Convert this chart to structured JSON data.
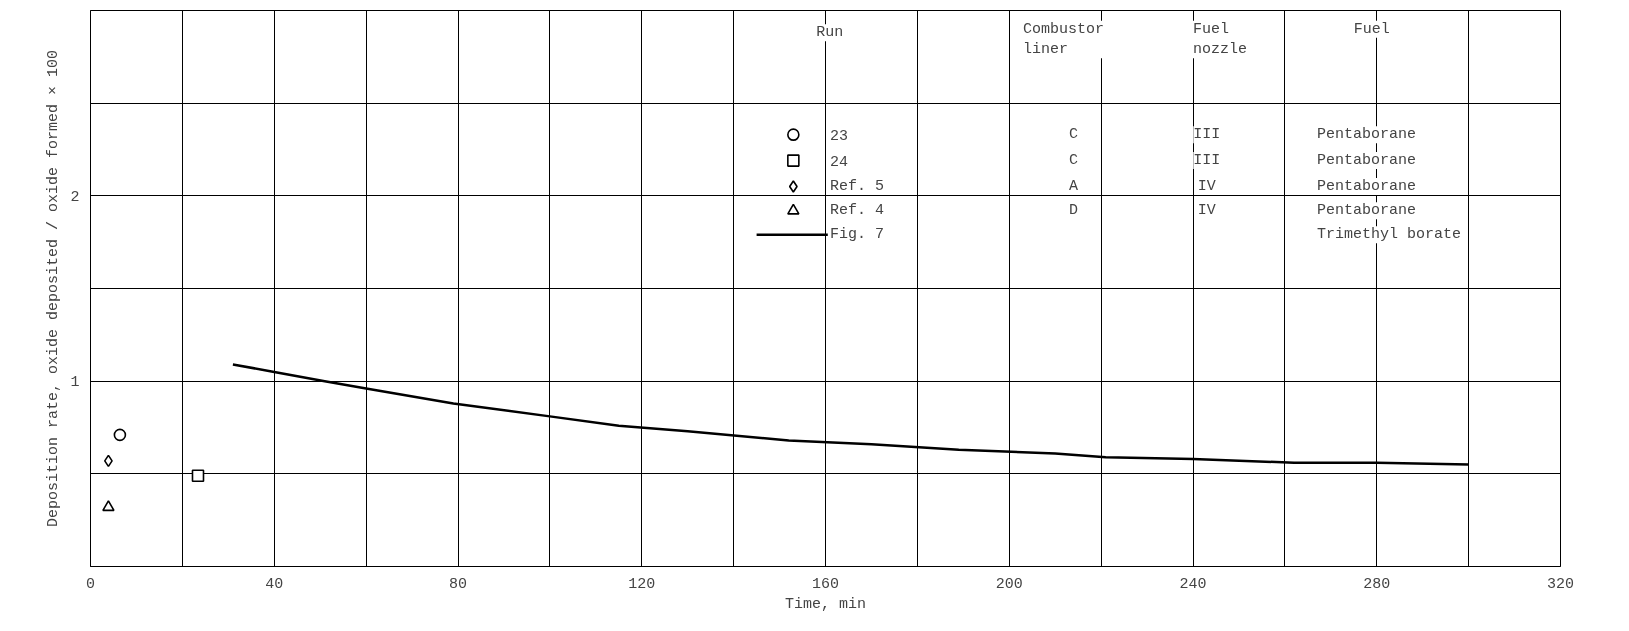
{
  "chart_data": {
    "type": "scatter",
    "xlabel": "Time, min",
    "ylabel": "Deposition rate, oxide deposited / oxide formed × 100",
    "xlim": [
      0,
      320
    ],
    "ylim": [
      0,
      3
    ],
    "xticks": [
      0,
      {
        "value": 20,
        "label": null
      },
      40,
      {
        "value": 60,
        "label": null
      },
      80,
      {
        "value": 100,
        "label": null
      },
      120,
      {
        "value": 140,
        "label": null
      },
      160,
      {
        "value": 180,
        "label": null
      },
      200,
      {
        "value": 220,
        "label": null
      },
      240,
      {
        "value": 260,
        "label": null
      },
      280,
      {
        "value": 300,
        "label": null
      },
      320
    ],
    "yticks": [
      {
        "value": 0,
        "label": null
      },
      {
        "value": 0.5,
        "label": null
      },
      1,
      {
        "value": 1.5,
        "label": null
      },
      2,
      {
        "value": 2.5,
        "label": null
      },
      {
        "value": 3,
        "label": null
      }
    ],
    "grid": true,
    "legend": "top right",
    "legend_title": "Run",
    "series": [
      {
        "name": "23",
        "color": "#000000",
        "marker": "circle",
        "x": [
          6.4
        ],
        "values": [
          0.71
        ]
      },
      {
        "name": "24",
        "color": "#000000",
        "marker": "square",
        "x": [
          23.4
        ],
        "values": [
          0.49
        ]
      },
      {
        "name": "Ref. 5",
        "color": "#000000",
        "marker": "diamond",
        "x": [
          3.9
        ],
        "values": [
          0.57
        ]
      },
      {
        "name": "Ref. 4",
        "color": "#000000",
        "marker": "triangle",
        "x": [
          3.9
        ],
        "values": [
          0.32
        ]
      },
      {
        "name": "Fig. 7",
        "color": "#000000",
        "type": "line",
        "marker": "none",
        "line_style": "solid",
        "x": [
          31,
          40,
          51,
          60,
          79,
          100,
          115,
          130,
          152,
          170,
          189,
          210,
          221,
          240,
          262,
          280,
          300
        ],
        "values": [
          1.09,
          1.05,
          1.0,
          0.96,
          0.88,
          0.81,
          0.76,
          0.73,
          0.68,
          0.66,
          0.63,
          0.61,
          0.59,
          0.58,
          0.56,
          0.56,
          0.55
        ]
      }
    ],
    "annotations": [
      "Combustor\nliner",
      "Fuel\nnozzle",
      "Fuel",
      "C",
      "III",
      "Pentaborane",
      "C",
      "III",
      "Pentaborane",
      "A",
      "IV",
      "Pentaborane",
      "D",
      "IV",
      "Pentaborane",
      "Trimethyl borate"
    ]
  }
}
